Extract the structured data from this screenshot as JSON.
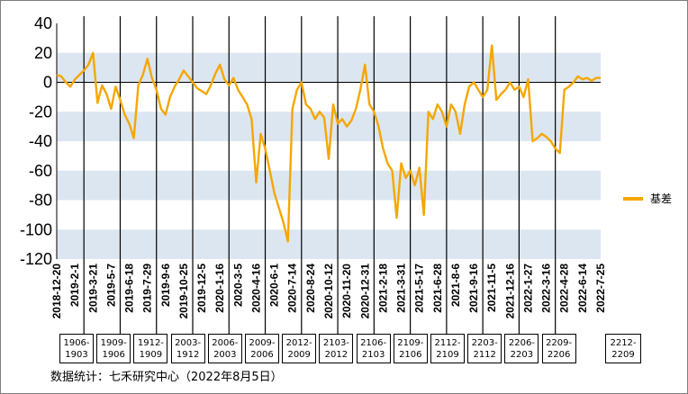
{
  "chart_data": {
    "type": "line",
    "ylim": [
      -120,
      40
    ],
    "yticks": [
      40,
      20,
      0,
      -20,
      -40,
      -60,
      -80,
      -100,
      -120
    ],
    "band_color": "#dce6f1",
    "line_color": "#f5a700",
    "x_tick_labels": [
      "2018-12-20",
      "2019-2-1",
      "2019-3-21",
      "2019-5-7",
      "2019-6-18",
      "2019-7-29",
      "2019-9-6",
      "2019-10-25",
      "2019-12-5",
      "2020-1-16",
      "2020-3-5",
      "2020-4-16",
      "2020-6-1",
      "2020-7-14",
      "2020-8-24",
      "2020-10-12",
      "2020-11-20",
      "2020-12-31",
      "2021-2-18",
      "2021-3-31",
      "2021-5-17",
      "2021-6-28",
      "2021-8-6",
      "2021-9-16",
      "2021-11-5",
      "2021-12-16",
      "2022-1-27",
      "2022-3-16",
      "2022-4-28",
      "2022-6-14",
      "2022-7-25"
    ],
    "series": [
      {
        "name": "基差",
        "x": [
          0,
          0.5,
          1,
          1.5,
          2,
          2.5,
          3,
          3.5,
          4,
          4.5,
          5,
          5.5,
          6,
          6.5,
          7,
          7.5,
          8,
          8.5,
          9,
          9.5,
          10,
          10.5,
          11,
          11.5,
          12,
          12.5,
          13,
          13.5,
          14,
          14.5,
          15,
          15.5,
          16,
          16.5,
          17,
          17.5,
          18,
          18.5,
          19,
          19.5,
          20,
          20.5,
          21,
          21.5,
          22,
          22.5,
          23,
          23.5,
          24,
          24.5,
          25,
          25.5,
          26,
          26.5,
          27,
          27.5,
          28,
          28.5,
          29,
          29.5,
          30,
          30.5,
          31,
          31.5,
          32,
          32.5,
          33,
          33.5,
          34,
          34.5,
          35,
          35.5,
          36,
          36.5,
          37,
          37.5,
          38,
          38.5,
          39,
          39.5,
          40,
          40.5,
          41,
          41.5,
          42,
          42.5,
          43,
          43.5,
          44,
          44.5,
          45,
          45.5,
          46,
          46.5,
          47,
          47.5,
          48,
          48.5,
          49,
          49.5,
          50,
          50.5,
          51,
          51.5,
          52,
          52.5,
          53,
          53.5,
          54,
          54.5,
          55,
          55.5,
          56,
          56.5,
          57,
          57.5,
          58,
          58.5,
          59,
          59.5,
          60
        ],
        "values": [
          5,
          4,
          0,
          -3,
          2,
          5,
          8,
          12,
          20,
          -14,
          -2,
          -8,
          -18,
          -3,
          -12,
          -22,
          -28,
          -38,
          -2,
          5,
          16,
          3,
          -5,
          -18,
          -22,
          -10,
          -3,
          2,
          8,
          4,
          0,
          -4,
          -6,
          -8,
          -2,
          6,
          12,
          2,
          -2,
          3,
          -5,
          -10,
          -15,
          -25,
          -68,
          -35,
          -45,
          -60,
          -75,
          -85,
          -95,
          -108,
          -18,
          -5,
          0,
          -15,
          -18,
          -25,
          -20,
          -24,
          -52,
          -15,
          -28,
          -25,
          -30,
          -26,
          -18,
          -5,
          12,
          -15,
          -20,
          -30,
          -45,
          -55,
          -60,
          -92,
          -55,
          -65,
          -60,
          -70,
          -58,
          -90,
          -20,
          -25,
          -15,
          -20,
          -30,
          -15,
          -20,
          -35,
          -15,
          -3,
          0,
          -5,
          -10,
          -5,
          25,
          -12,
          -8,
          -5,
          0,
          -5,
          -3,
          -10,
          2,
          -40,
          -38,
          -35,
          -37,
          -40,
          -45,
          -48,
          -5,
          -3,
          0,
          4,
          2,
          3,
          1,
          3,
          3
        ]
      }
    ],
    "contracts": [
      "1906-\n1903",
      "1909-\n1906",
      "1912-\n1909",
      "2003-\n1912",
      "2006-\n2003",
      "2009-\n2006",
      "2012-\n2009",
      "2103-\n2012",
      "2106-\n2103",
      "2109-\n2106",
      "2112-\n2109",
      "2203-\n2112",
      "2206-\n2203",
      "2209-\n2206",
      "2212-\n2209"
    ],
    "legend_position": "right",
    "source": "数据统计：七禾研究中心（2022年8月5日）"
  }
}
